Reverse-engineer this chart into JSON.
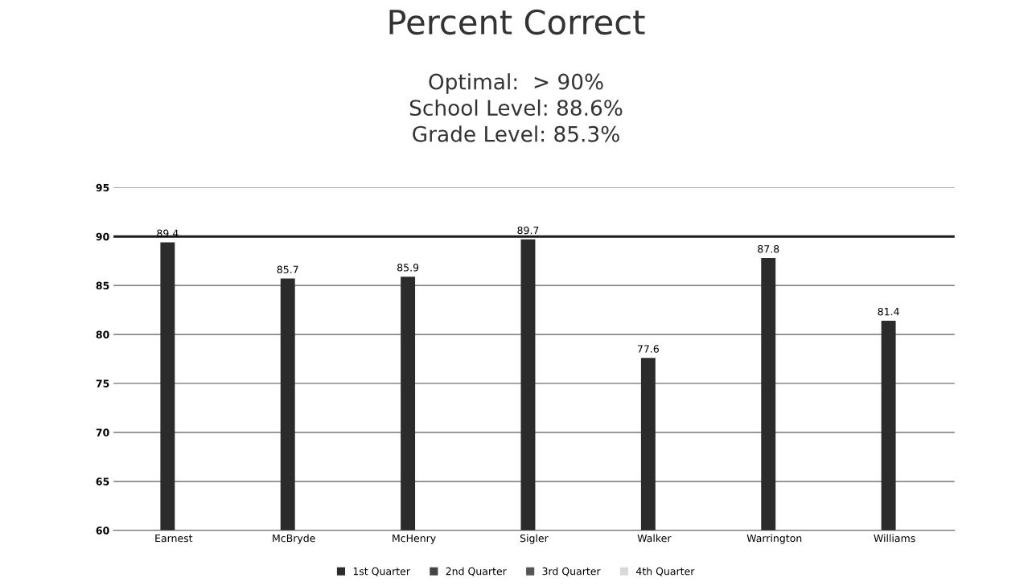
{
  "chart_data": {
    "type": "bar",
    "title": "Percent Correct",
    "subtitle": "Optimal:  > 90%\nSchool Level: 88.6%\nGrade Level: 85.3%",
    "categories": [
      "Earnest",
      "McBryde",
      "McHenry",
      "Sigler",
      "Walker",
      "Warrington",
      "Williams"
    ],
    "series": [
      {
        "name": "1st Quarter",
        "color": "#2b2b2b",
        "values": [
          89.4,
          85.7,
          85.9,
          89.7,
          77.6,
          87.8,
          81.4
        ]
      },
      {
        "name": "2nd Quarter",
        "color": "#444444",
        "values": [
          null,
          null,
          null,
          null,
          null,
          null,
          null
        ]
      },
      {
        "name": "3rd Quarter",
        "color": "#555555",
        "values": [
          null,
          null,
          null,
          null,
          null,
          null,
          null
        ]
      },
      {
        "name": "4th Quarter",
        "color": "#d9d9d9",
        "values": [
          null,
          null,
          null,
          null,
          null,
          null,
          null
        ]
      }
    ],
    "ylim": [
      60,
      95
    ],
    "yticks": [
      60,
      65,
      70,
      75,
      80,
      85,
      90,
      95
    ],
    "grid": "y",
    "data_labels": true,
    "legend": "bottom",
    "ref_lines": [
      {
        "axis": "y",
        "value": 90,
        "color": "#1a1a1a"
      }
    ]
  }
}
